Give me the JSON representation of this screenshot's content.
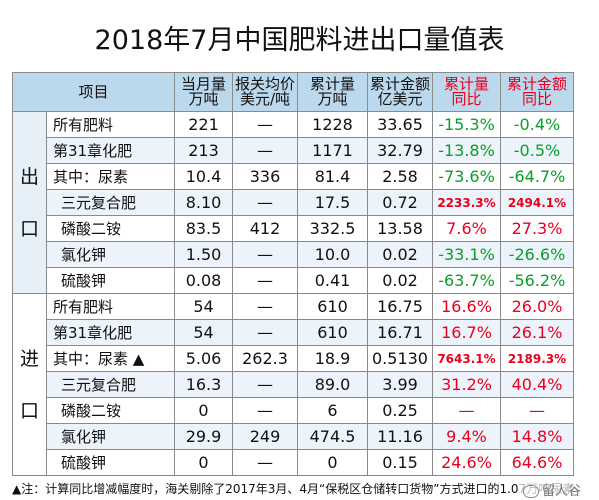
{
  "title": "2018年7月中国肥料进出口量值表",
  "header": {
    "item": "项目",
    "monthly_vol": [
      "当月量",
      "万吨"
    ],
    "customs_price": [
      "报关均价",
      "美元/吨"
    ],
    "cum_vol": [
      "累计量",
      "万吨"
    ],
    "cum_val": [
      "累计金额",
      "亿美元"
    ],
    "cum_vol_yoy": [
      "累计量",
      "同比"
    ],
    "cum_val_yoy": [
      "累计金额",
      "同比"
    ]
  },
  "sections": {
    "export": [
      "出",
      "口"
    ],
    "import": [
      "进",
      "口"
    ]
  },
  "export_rows": [
    {
      "item": "所有肥料",
      "monthly": "221",
      "price": "—",
      "cum_vol": "1228",
      "cum_val": "33.65",
      "vol_yoy": "-15.3%",
      "val_yoy": "-0.4%",
      "vol_color": "g",
      "val_color": "g"
    },
    {
      "item": "第31章化肥",
      "monthly": "213",
      "price": "—",
      "cum_vol": "1171",
      "cum_val": "32.79",
      "vol_yoy": "-13.8%",
      "val_yoy": "-0.5%",
      "vol_color": "g",
      "val_color": "g"
    },
    {
      "item": "其中：尿素",
      "monthly": "10.4",
      "price": "336",
      "cum_vol": "81.4",
      "cum_val": "2.58",
      "vol_yoy": "-73.6%",
      "val_yoy": "-64.7%",
      "vol_color": "g",
      "val_color": "g"
    },
    {
      "item": "三元复合肥",
      "monthly": "8.10",
      "price": "—",
      "cum_vol": "17.5",
      "cum_val": "0.72",
      "vol_yoy": "2233.3%",
      "val_yoy": "2494.1%",
      "vol_color": "r small",
      "val_color": "r small"
    },
    {
      "item": "磷酸二铵",
      "monthly": "83.5",
      "price": "412",
      "cum_vol": "332.5",
      "cum_val": "13.58",
      "vol_yoy": "7.6%",
      "val_yoy": "27.3%",
      "vol_color": "r",
      "val_color": "r"
    },
    {
      "item": "氯化钾",
      "monthly": "1.50",
      "price": "—",
      "cum_vol": "10.0",
      "cum_val": "0.02",
      "vol_yoy": "-33.1%",
      "val_yoy": "-26.6%",
      "vol_color": "g",
      "val_color": "g"
    },
    {
      "item": "硫酸钾",
      "monthly": "0.08",
      "price": "—",
      "cum_vol": "0.41",
      "cum_val": "0.02",
      "vol_yoy": "-63.7%",
      "val_yoy": "-56.2%",
      "vol_color": "g",
      "val_color": "g"
    }
  ],
  "import_rows": [
    {
      "item": "所有肥料",
      "monthly": "54",
      "price": "—",
      "cum_vol": "610",
      "cum_val": "16.75",
      "vol_yoy": "16.6%",
      "val_yoy": "26.0%",
      "vol_color": "r",
      "val_color": "r"
    },
    {
      "item": "第31章化肥",
      "monthly": "54",
      "price": "—",
      "cum_vol": "610",
      "cum_val": "16.71",
      "vol_yoy": "16.7%",
      "val_yoy": "26.1%",
      "vol_color": "r",
      "val_color": "r"
    },
    {
      "item": "其中：尿素 ▲",
      "monthly": "5.06",
      "price": "262.3",
      "cum_vol": "18.9",
      "cum_val": "0.5130",
      "vol_yoy": "7643.1%",
      "val_yoy": "2189.3%",
      "vol_color": "r small",
      "val_color": "r small"
    },
    {
      "item": "三元复合肥",
      "monthly": "16.3",
      "price": "—",
      "cum_vol": "89.0",
      "cum_val": "3.99",
      "vol_yoy": "31.2%",
      "val_yoy": "40.4%",
      "vol_color": "r",
      "val_color": "r"
    },
    {
      "item": "磷酸二铵",
      "monthly": "0",
      "price": "—",
      "cum_vol": "6",
      "cum_val": "0.25",
      "vol_yoy": "—",
      "val_yoy": "—",
      "vol_color": "r",
      "val_color": "r"
    },
    {
      "item": "氯化钾",
      "monthly": "29.9",
      "price": "249",
      "cum_vol": "474.5",
      "cum_val": "11.16",
      "vol_yoy": "9.4%",
      "val_yoy": "14.8%",
      "vol_color": "r",
      "val_color": "r"
    },
    {
      "item": "硫酸钾",
      "monthly": "0",
      "price": "—",
      "cum_vol": "0",
      "cum_val": "0.15",
      "vol_yoy": "24.6%",
      "val_yoy": "64.6%",
      "vol_color": "r",
      "val_color": "r"
    }
  ],
  "footnote": "▲注：计算同比增减幅度时，海关剔除了2017年3月、4月“保税区仓储转口货物”方式进口的1.07万吨尿素",
  "watermark": "留人谷"
}
